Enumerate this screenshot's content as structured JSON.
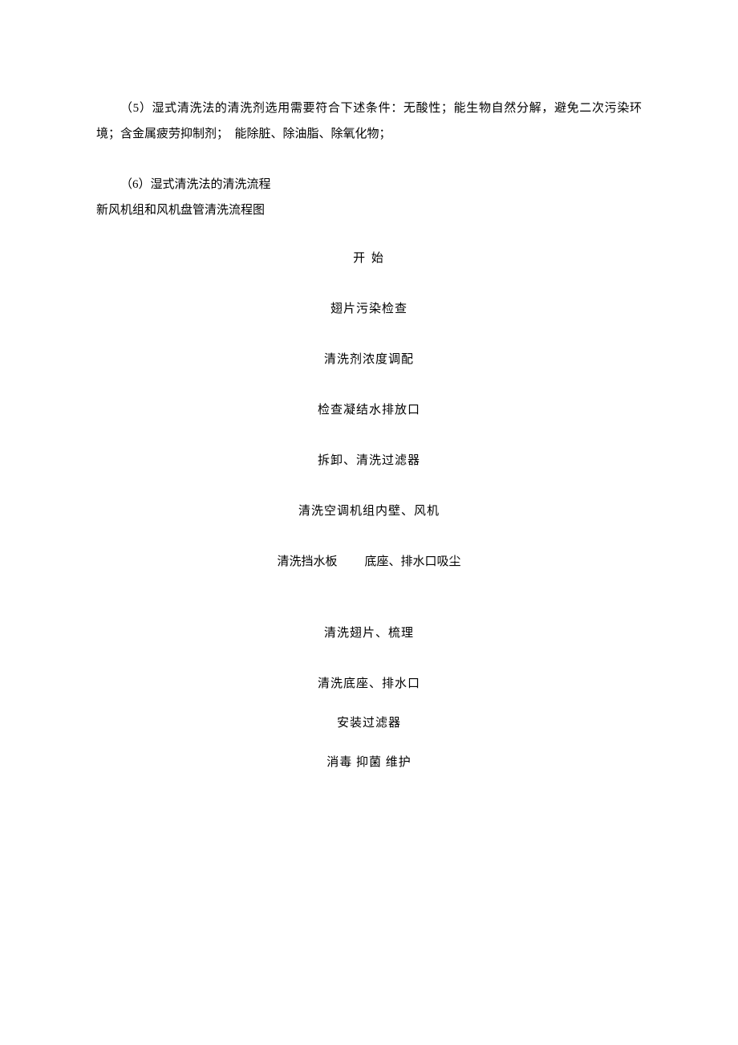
{
  "document": {
    "text_color": "#000000",
    "background_color": "#ffffff",
    "font_family": "SimSun",
    "body_fontsize": 15,
    "line_height": 2.1,
    "paragraphs": {
      "p5": "（5）湿式清洗法的清洗剂选用需要符合下述条件：无酸性；能生物自然分解，避免二次污染环境；含金属疲劳抑制剂；　能除脏、除油脂、除氧化物；",
      "p6": "（6）湿式清洗法的清洗流程",
      "subtitle": "新风机组和风机盘管清洗流程图"
    },
    "flowchart": {
      "type": "flowchart",
      "title": "开 始",
      "steps": [
        "翅片污染检查",
        "清洗剂浓度调配",
        "检查凝结水排放口",
        "拆卸、清洗过滤器",
        "清洗空调机组内壁、风机"
      ],
      "split_step": {
        "left": "清洗挡水板",
        "right": "底座、排水口吸尘"
      },
      "steps_after": [
        "清洗翅片、梳理",
        "清洗底座、排水口",
        "安装过滤器",
        "消毒 抑菌 维护"
      ],
      "step_fontsize": 15,
      "step_gap": 42,
      "text_color": "#000000"
    }
  }
}
